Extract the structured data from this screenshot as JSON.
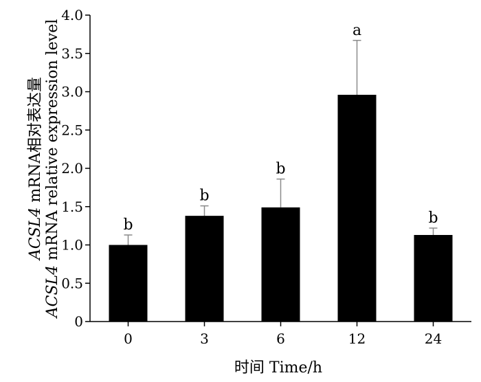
{
  "chart_data": {
    "type": "bar",
    "categories": [
      "0",
      "3",
      "6",
      "12",
      "24"
    ],
    "values": [
      1.0,
      1.38,
      1.49,
      2.96,
      1.13
    ],
    "errors": [
      0.13,
      0.13,
      0.37,
      0.71,
      0.09
    ],
    "significance": [
      "b",
      "b",
      "b",
      "a",
      "b"
    ],
    "xlabel": "时间 Time/h",
    "ylabel_line1_italic": "ACSL4",
    "ylabel_line1_rest": " mRNA相对表达量",
    "ylabel_line2_italic": "ACSL4",
    "ylabel_line2_rest": " mRNA relative expression level",
    "ylim": [
      0,
      4.0
    ],
    "yticks": [
      "0",
      "0.5",
      "1.0",
      "1.5",
      "2.0",
      "2.5",
      "3.0",
      "3.5",
      "4.0"
    ],
    "bar_color": "#000000",
    "error_color": "#8a8a8a",
    "grid": false
  }
}
